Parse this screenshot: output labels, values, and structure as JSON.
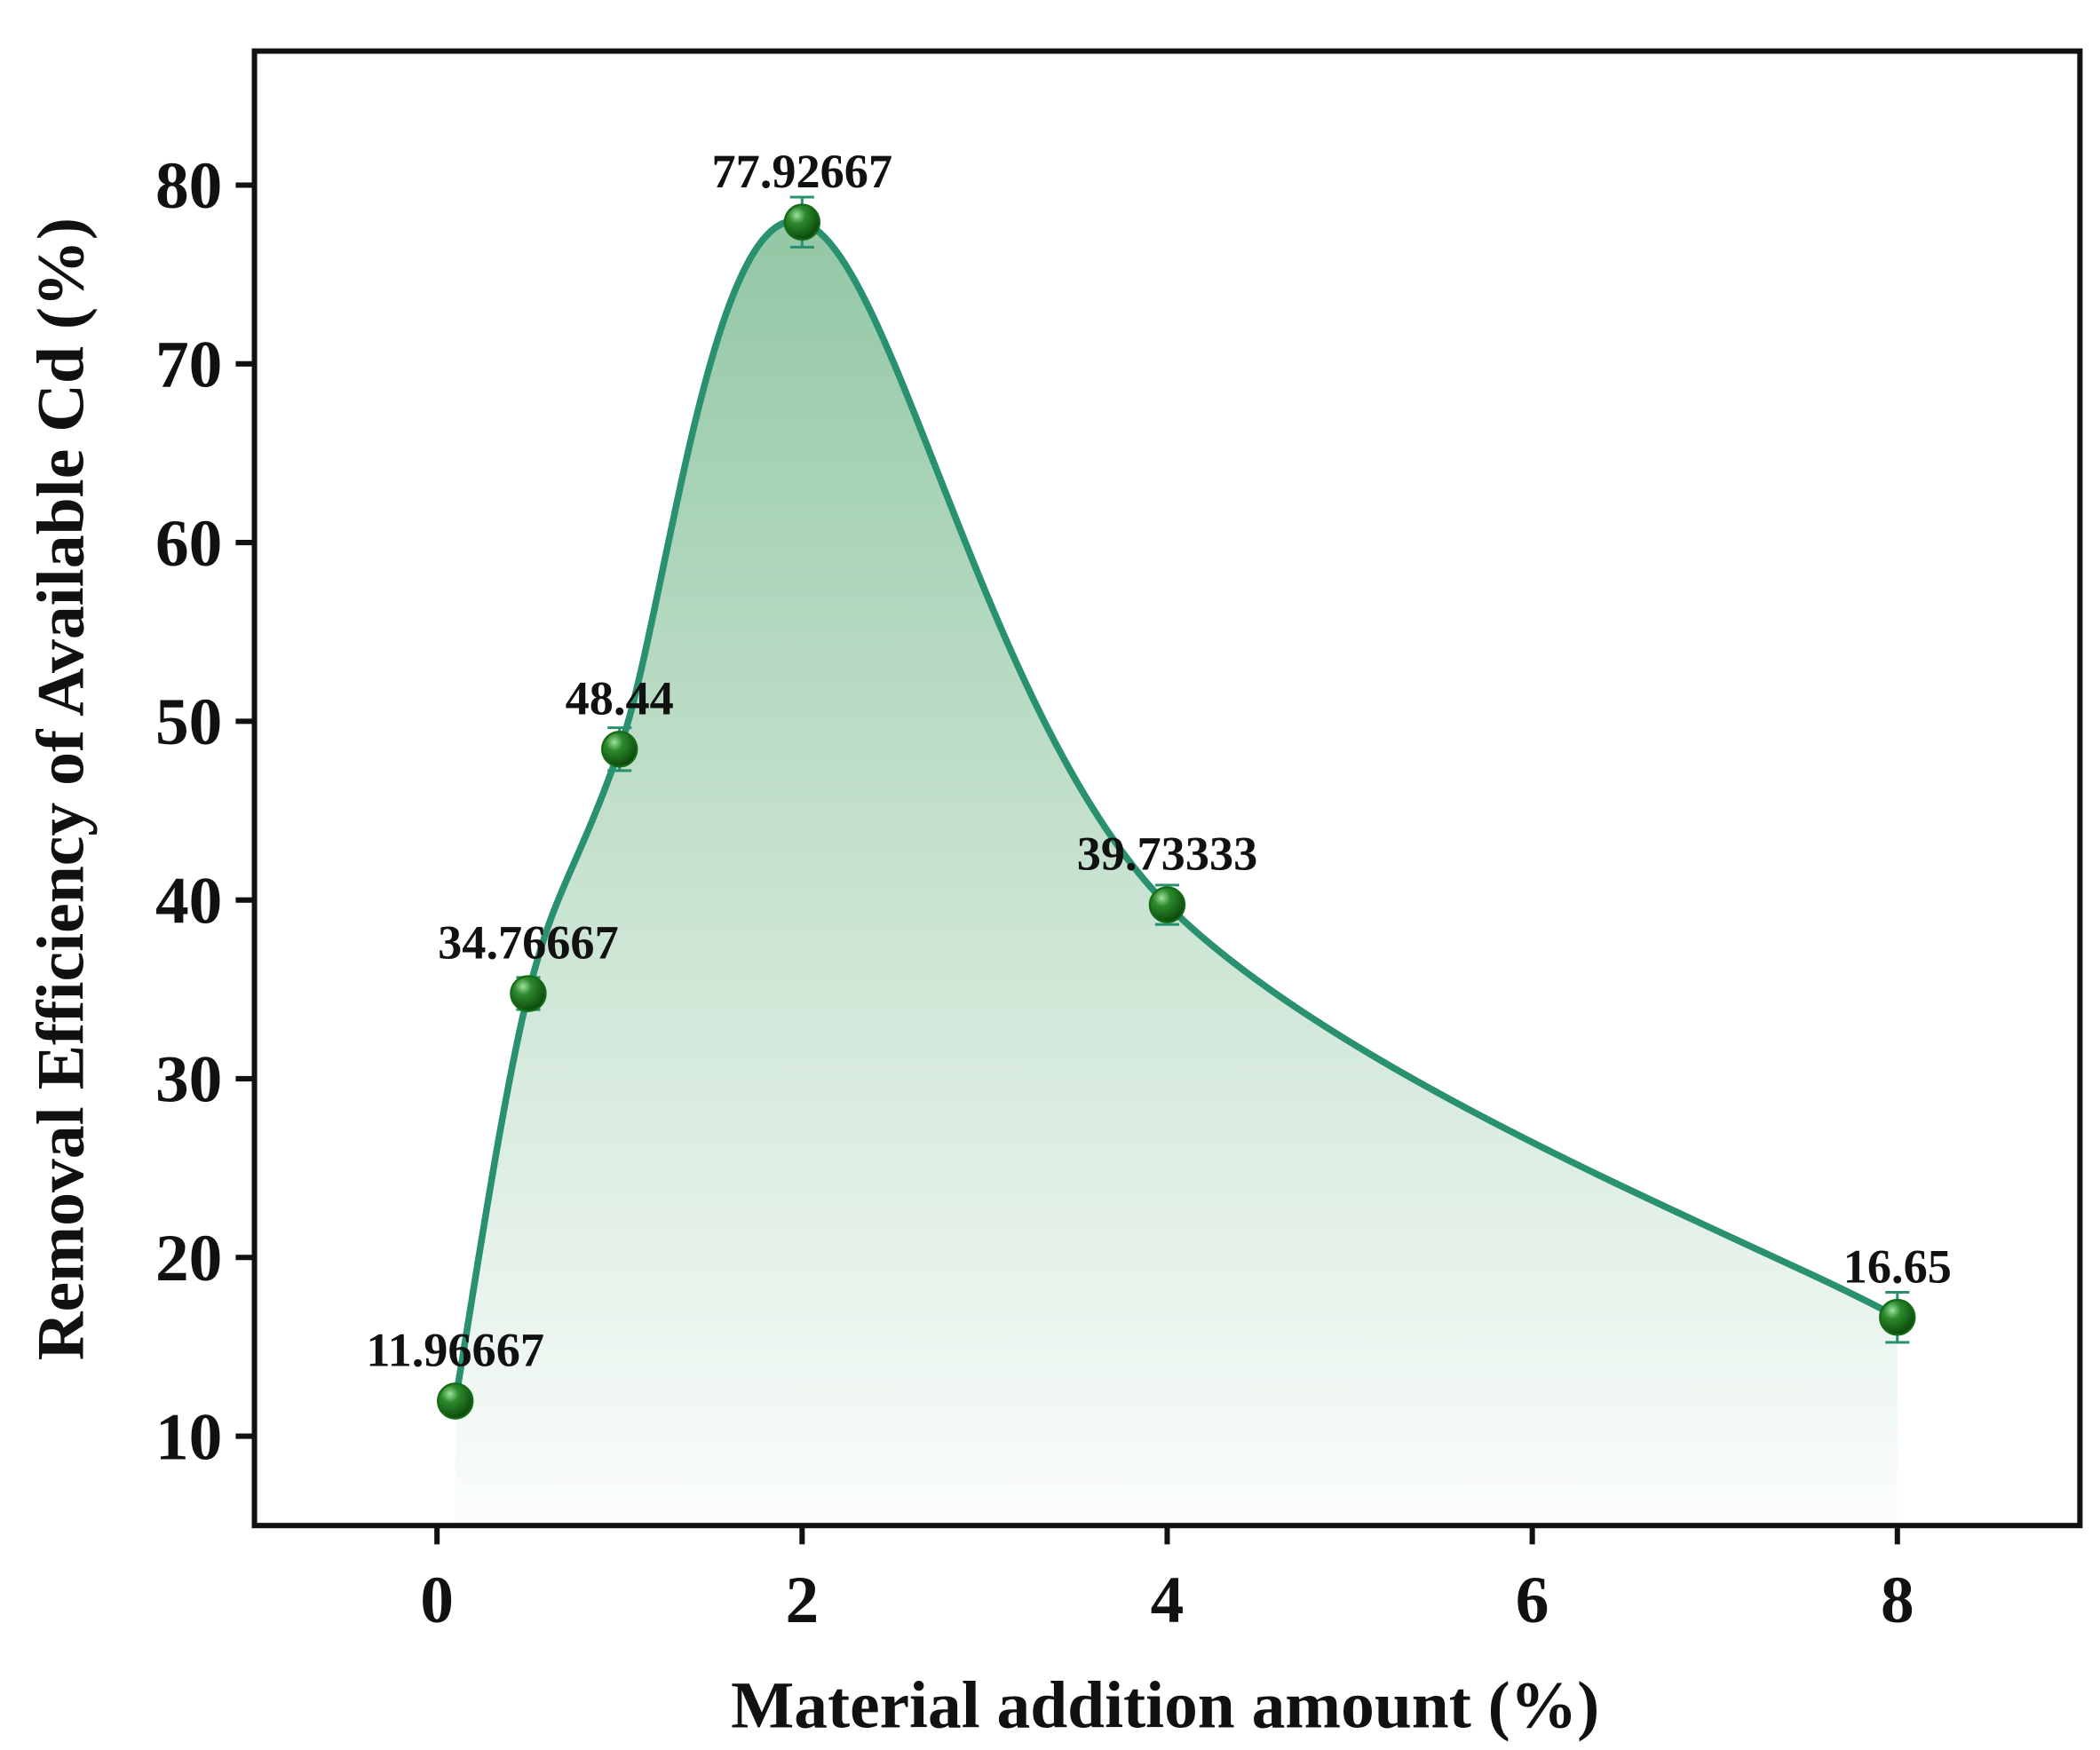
{
  "chart_data": {
    "type": "line",
    "x_label": "Material addition amount (%)",
    "y_label": "Removal Efficiency of Available Cd (%)",
    "x": [
      0.1,
      0.5,
      1,
      2,
      4,
      8
    ],
    "values": [
      11.96667,
      34.76667,
      48.44,
      77.92667,
      39.73333,
      16.65
    ],
    "errors": [
      0.6,
      0.9,
      1.2,
      1.4,
      1.1,
      1.4
    ],
    "color": "#2a9170",
    "marker_color": "#156b15",
    "xlim": [
      -1,
      9
    ],
    "xticks": [
      0,
      2,
      4,
      6,
      8
    ],
    "ylim": [
      5,
      87.5
    ],
    "yticks": [
      10,
      20,
      30,
      40,
      50,
      60,
      70,
      80
    ]
  }
}
